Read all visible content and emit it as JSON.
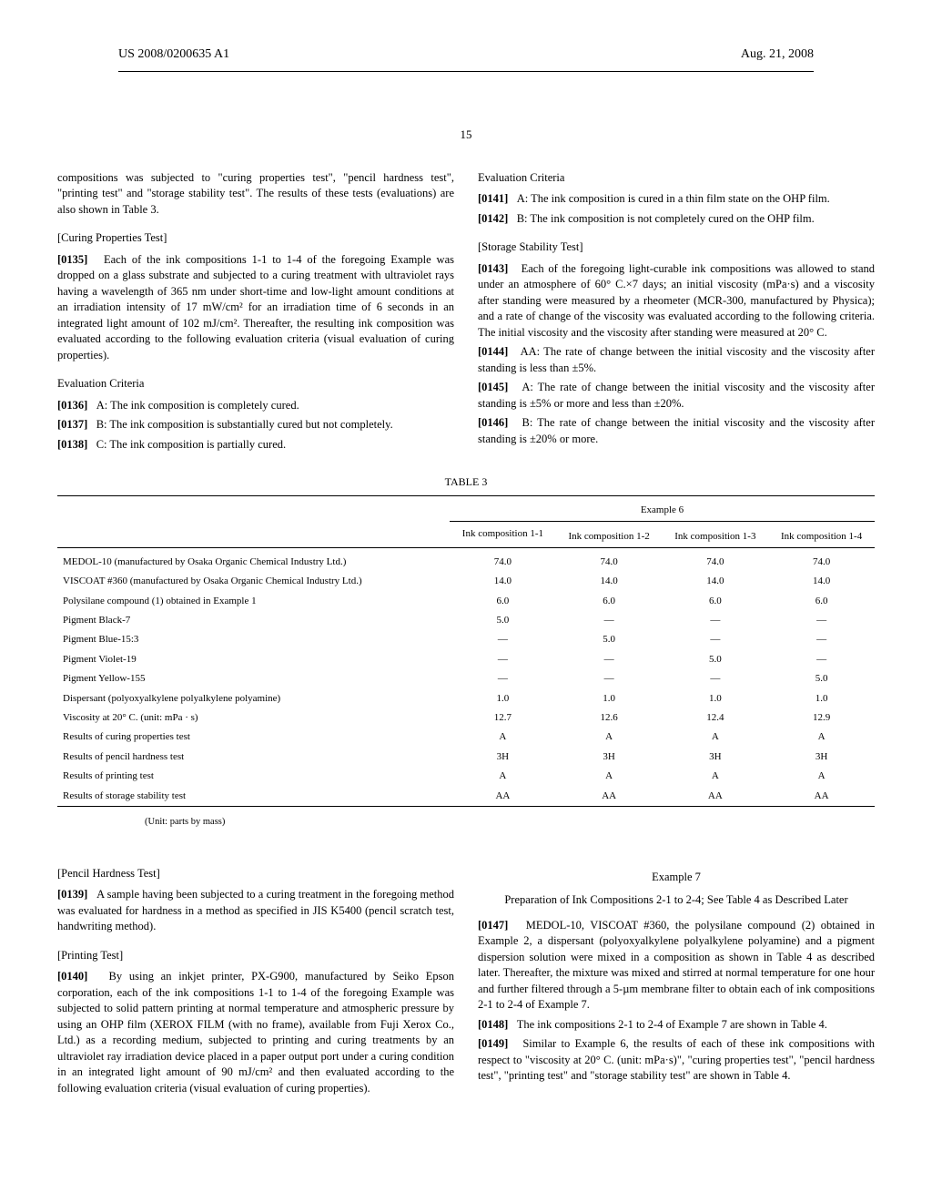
{
  "header": {
    "pubno": "US 2008/0200635 A1",
    "date": "Aug. 21, 2008"
  },
  "page_number": "15",
  "left": {
    "intro": "compositions was subjected to \"curing properties test\", \"pencil hardness test\", \"printing test\" and \"storage stability test\". The results of these tests (evaluations) are also shown in Table 3.",
    "sec1_head": "[Curing Properties Test]",
    "p0135": "Each of the ink compositions 1-1 to 1-4 of the foregoing Example was dropped on a glass substrate and subjected to a curing treatment with ultraviolet rays having a wavelength of 365 nm under short-time and low-light amount conditions at an irradiation intensity of 17 mW/cm² for an irradiation time of 6 seconds in an integrated light amount of 102 mJ/cm². Thereafter, the resulting ink composition was evaluated according to the following evaluation criteria (visual evaluation of curing properties).",
    "eval_head": "Evaluation Criteria",
    "p0136": "A: The ink composition is completely cured.",
    "p0137": "B: The ink composition is substantially cured but not completely.",
    "p0138": "C: The ink composition is partially cured.",
    "sec2_head": "[Pencil Hardness Test]",
    "p0139": "A sample having been subjected to a curing treatment in the foregoing method was evaluated for hardness in a method as specified in JIS K5400 (pencil scratch test, handwriting method).",
    "sec3_head": "[Printing Test]",
    "p0140": "By using an inkjet printer, PX-G900, manufactured by Seiko Epson corporation, each of the ink compositions 1-1 to 1-4 of the foregoing Example was subjected to solid pattern printing at normal temperature and atmospheric pressure by using an OHP film (XEROX FILM (with no frame), available from Fuji Xerox Co., Ltd.) as a recording medium, subjected to printing and curing treatments by an ultraviolet ray irradiation device placed in a paper output port under a curing condition in an integrated light amount of 90 mJ/cm² and then evaluated according to the following evaluation criteria (visual evaluation of curing properties)."
  },
  "right": {
    "eval_head": "Evaluation Criteria",
    "p0141": "A: The ink composition is cured in a thin film state on the OHP film.",
    "p0142": "B: The ink composition is not completely cured on the OHP film.",
    "sec4_head": "[Storage Stability Test]",
    "p0143": "Each of the foregoing light-curable ink compositions was allowed to stand under an atmosphere of 60° C.×7 days; an initial viscosity (mPa·s) and a viscosity after standing were measured by a rheometer (MCR-300, manufactured by Physica); and a rate of change of the viscosity was evaluated according to the following criteria. The initial viscosity and the viscosity after standing were measured at 20° C.",
    "p0144": "AA: The rate of change between the initial viscosity and the viscosity after standing is less than ±5%.",
    "p0145": "A: The rate of change between the initial viscosity and the viscosity after standing is ±5% or more and less than ±20%.",
    "p0146": "B: The rate of change between the initial viscosity and the viscosity after standing is ±20% or more.",
    "example7_head": "Example 7",
    "example7_sub": "Preparation of Ink Compositions 2-1 to 2-4; See Table 4 as Described Later",
    "p0147": "MEDOL-10, VISCOAT #360, the polysilane compound (2) obtained in Example 2, a dispersant (polyoxyalkylene polyalkylene polyamine) and a pigment dispersion solution were mixed in a composition as shown in Table 4 as described later. Thereafter, the mixture was mixed and stirred at normal temperature for one hour and further filtered through a 5-µm membrane filter to obtain each of ink compositions 2-1 to 2-4 of Example 7.",
    "p0148": "The ink compositions 2-1 to 2-4 of Example 7 are shown in Table 4.",
    "p0149": "Similar to Example 6, the results of each of these ink compositions with respect to \"viscosity at 20° C. (unit: mPa·s)\", \"curing properties test\", \"pencil hardness test\", \"printing test\" and \"storage stability test\" are shown in Table 4."
  },
  "table3": {
    "caption": "TABLE 3",
    "super_header": "Example 6",
    "col_headers": [
      "Ink composition 1-1",
      "Ink composition 1-2",
      "Ink composition 1-3",
      "Ink composition 1-4"
    ],
    "rows": [
      {
        "name": "MEDOL-10 (manufactured by Osaka Organic Chemical Industry Ltd.)",
        "v": [
          "74.0",
          "74.0",
          "74.0",
          "74.0"
        ]
      },
      {
        "name": "VISCOAT #360 (manufactured by Osaka Organic Chemical Industry Ltd.)",
        "v": [
          "14.0",
          "14.0",
          "14.0",
          "14.0"
        ]
      },
      {
        "name": "Polysilane compound (1) obtained in Example 1",
        "v": [
          "6.0",
          "6.0",
          "6.0",
          "6.0"
        ]
      },
      {
        "name": "Pigment Black-7",
        "v": [
          "5.0",
          "—",
          "—",
          "—"
        ]
      },
      {
        "name": "Pigment Blue-15:3",
        "v": [
          "—",
          "5.0",
          "—",
          "—"
        ]
      },
      {
        "name": "Pigment Violet-19",
        "v": [
          "—",
          "—",
          "5.0",
          "—"
        ]
      },
      {
        "name": "Pigment Yellow-155",
        "v": [
          "—",
          "—",
          "—",
          "5.0"
        ]
      },
      {
        "name": "Dispersant (polyoxyalkylene polyalkylene polyamine)",
        "v": [
          "1.0",
          "1.0",
          "1.0",
          "1.0"
        ]
      },
      {
        "name": "Viscosity at 20° C. (unit: mPa · s)",
        "v": [
          "12.7",
          "12.6",
          "12.4",
          "12.9"
        ]
      },
      {
        "name": "Results of curing properties test",
        "v": [
          "A",
          "A",
          "A",
          "A"
        ]
      },
      {
        "name": "Results of pencil hardness test",
        "v": [
          "3H",
          "3H",
          "3H",
          "3H"
        ]
      },
      {
        "name": "Results of printing test",
        "v": [
          "A",
          "A",
          "A",
          "A"
        ]
      },
      {
        "name": "Results of storage stability test",
        "v": [
          "AA",
          "AA",
          "AA",
          "AA"
        ]
      }
    ],
    "unit_note": "(Unit: parts by mass)"
  }
}
